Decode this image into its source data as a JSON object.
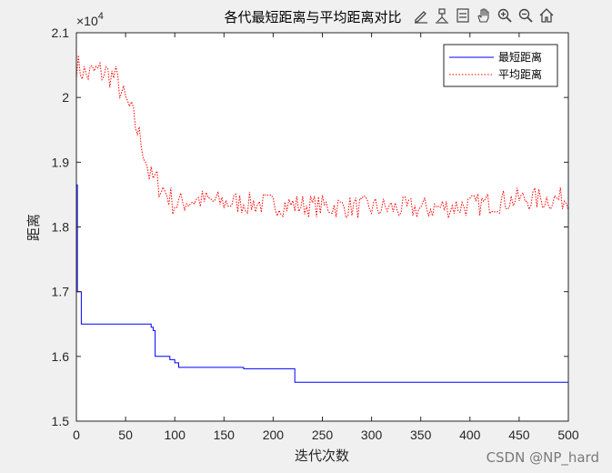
{
  "chart_data": {
    "type": "line",
    "title": "各代最短距离与平均距离对比",
    "xlabel": "迭代次数",
    "ylabel": "距离",
    "xlim": [
      0,
      500
    ],
    "ylim": [
      15000,
      21000
    ],
    "exponent_label": "×10",
    "exponent_power": "4",
    "x_ticks": [
      "0",
      "50",
      "100",
      "150",
      "200",
      "250",
      "300",
      "350",
      "400",
      "450",
      "500"
    ],
    "y_ticks": [
      "1.5",
      "1.6",
      "1.7",
      "1.8",
      "1.9",
      "2",
      "2.1"
    ],
    "legend_position": "top-right",
    "grid": false,
    "series": [
      {
        "name": "最短距离",
        "color": "#0000ff",
        "style": "solid",
        "step": true,
        "points": [
          [
            0,
            18650
          ],
          [
            1,
            17000
          ],
          [
            5,
            16500
          ],
          [
            76,
            16450
          ],
          [
            78,
            16400
          ],
          [
            80,
            16000
          ],
          [
            95,
            15950
          ],
          [
            100,
            15900
          ],
          [
            104,
            15830
          ],
          [
            170,
            15810
          ],
          [
            222,
            15600
          ],
          [
            500,
            15600
          ]
        ]
      },
      {
        "name": "平均距离",
        "color": "#ff0000",
        "style": "dotted",
        "step": false,
        "anchors": [
          [
            0,
            20500
          ],
          [
            10,
            20350
          ],
          [
            20,
            20400
          ],
          [
            30,
            20380
          ],
          [
            40,
            20300
          ],
          [
            48,
            20000
          ],
          [
            55,
            19800
          ],
          [
            62,
            19500
          ],
          [
            70,
            19100
          ],
          [
            75,
            18750
          ],
          [
            82,
            18700
          ],
          [
            90,
            18550
          ],
          [
            100,
            18350
          ],
          [
            120,
            18420
          ],
          [
            150,
            18380
          ],
          [
            200,
            18350
          ],
          [
            250,
            18320
          ],
          [
            300,
            18300
          ],
          [
            350,
            18280
          ],
          [
            400,
            18330
          ],
          [
            450,
            18430
          ],
          [
            500,
            18430
          ]
        ],
        "noise_amplitude": 180
      }
    ]
  },
  "toolbar": [
    "edit-plot-icon",
    "data-tips-icon",
    "legend-icon",
    "pan-icon",
    "zoom-in-icon",
    "zoom-out-icon",
    "home-icon"
  ],
  "watermark": "CSDN @NP_hard"
}
